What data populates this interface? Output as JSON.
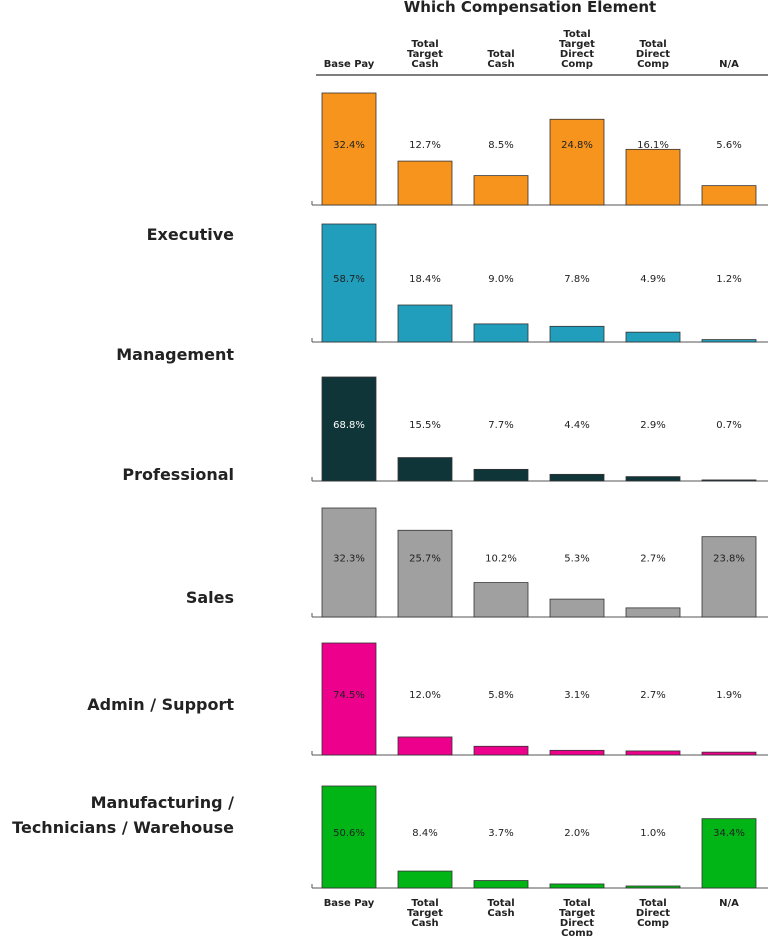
{
  "title": "Which Compensation Element",
  "categories": [
    "Base Pay",
    "Total\nTarget\nCash",
    "Total\nCash",
    "Total\nTarget\nDirect\nComp",
    "Total\nDirect\nComp",
    "N/A"
  ],
  "chart_data": [
    {
      "type": "bar",
      "title": "Executive",
      "color": "#f7941d",
      "values": [
        32.4,
        12.7,
        8.5,
        24.8,
        16.1,
        5.6
      ],
      "value_labels": [
        "32.4%",
        "12.7%",
        "8.5%",
        "24.8%",
        "16.1%",
        "5.6%"
      ],
      "ylim": [
        0,
        32.4
      ]
    },
    {
      "type": "bar",
      "title": "Management",
      "color": "#219ebc",
      "values": [
        58.7,
        18.4,
        9.0,
        7.8,
        4.9,
        1.2
      ],
      "value_labels": [
        "58.7%",
        "18.4%",
        "9.0%",
        "7.8%",
        "4.9%",
        "1.2%"
      ],
      "ylim": [
        0,
        58.7
      ]
    },
    {
      "type": "bar",
      "title": "Professional",
      "color": "#0f3538",
      "values": [
        68.8,
        15.5,
        7.7,
        4.4,
        2.9,
        0.7
      ],
      "value_labels": [
        "68.8%",
        "15.5%",
        "7.7%",
        "4.4%",
        "2.9%",
        "0.7%"
      ],
      "ylim": [
        0,
        68.8
      ]
    },
    {
      "type": "bar",
      "title": "Sales",
      "color": "#a0a0a0",
      "values": [
        32.3,
        25.7,
        10.2,
        5.3,
        2.7,
        23.8
      ],
      "value_labels": [
        "32.3%",
        "25.7%",
        "10.2%",
        "5.3%",
        "2.7%",
        "23.8%"
      ],
      "ylim": [
        0,
        32.3
      ]
    },
    {
      "type": "bar",
      "title": "Admin / Support",
      "color": "#ec008c",
      "values": [
        74.5,
        12.0,
        5.8,
        3.1,
        2.7,
        1.9
      ],
      "value_labels": [
        "74.5%",
        "12.0%",
        "5.8%",
        "3.1%",
        "2.7%",
        "1.9%"
      ],
      "ylim": [
        0,
        74.5
      ]
    },
    {
      "type": "bar",
      "title": "Manufacturing /\nTechnicians / Warehouse",
      "color": "#00b515",
      "values": [
        50.6,
        8.4,
        3.7,
        2.0,
        1.0,
        34.4
      ],
      "value_labels": [
        "50.6%",
        "8.4%",
        "3.7%",
        "2.0%",
        "1.0%",
        "34.4%"
      ],
      "ylim": [
        0,
        50.6
      ]
    }
  ]
}
